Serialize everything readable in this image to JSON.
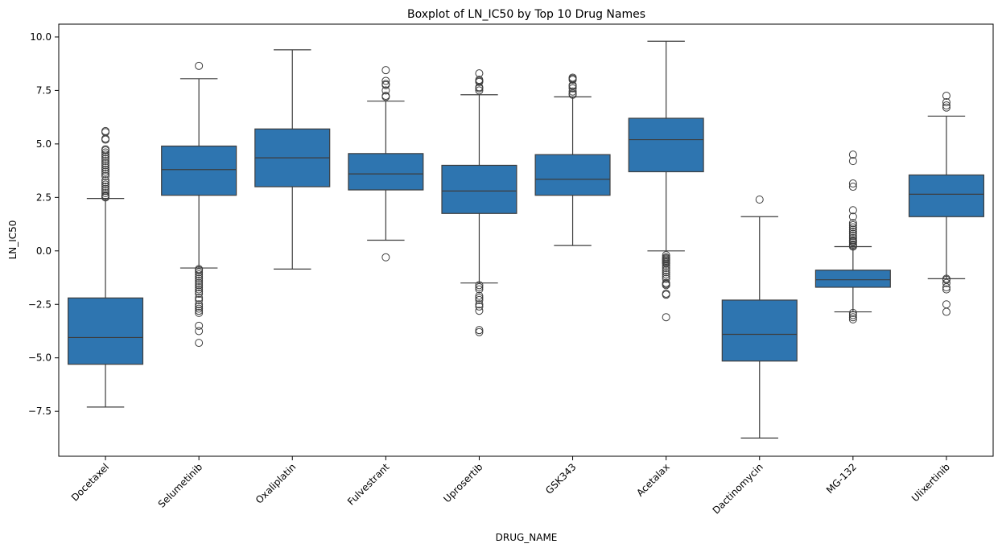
{
  "chart_data": {
    "type": "box",
    "title": "Boxplot of LN_IC50 by Top 10 Drug Names",
    "xlabel": "DRUG_NAME",
    "ylabel": "LN_IC50",
    "ylim": [
      -9.6,
      10.6
    ],
    "yticks": [
      -7.5,
      -5.0,
      -2.5,
      0.0,
      2.5,
      5.0,
      7.5,
      10.0
    ],
    "ytick_labels": [
      "−7.5",
      "−5.0",
      "−2.5",
      "0.0",
      "2.5",
      "5.0",
      "7.5",
      "10.0"
    ],
    "grid": false,
    "box_color": "#2e75b0",
    "line_color": "#3d3d3d",
    "categories": [
      "Docetaxel",
      "Selumetinib",
      "Oxaliplatin",
      "Fulvestrant",
      "Uprosertib",
      "GSK343",
      "Acetalax",
      "Dactinomycin",
      "MG-132",
      "Ulixertinib"
    ],
    "boxes": [
      {
        "name": "Docetaxel",
        "whisker_low": -7.3,
        "q1": -5.3,
        "median": -4.05,
        "q3": -2.2,
        "whisker_high": 2.45,
        "outliers": [
          2.5,
          2.55,
          2.6,
          2.7,
          2.8,
          2.9,
          3.0,
          3.1,
          3.2,
          3.3,
          3.5,
          3.6,
          3.7,
          3.8,
          3.9,
          4.0,
          4.1,
          4.2,
          4.3,
          4.4,
          4.5,
          4.6,
          4.7,
          4.75,
          5.2,
          5.25,
          5.55,
          5.6
        ]
      },
      {
        "name": "Selumetinib",
        "whisker_low": -0.8,
        "q1": 2.6,
        "median": 3.8,
        "q3": 4.9,
        "whisker_high": 8.05,
        "outliers": [
          8.65,
          -0.85,
          -0.9,
          -1.0,
          -1.1,
          -1.2,
          -1.3,
          -1.4,
          -1.5,
          -1.6,
          -1.7,
          -1.8,
          -1.9,
          -2.0,
          -2.2,
          -2.3,
          -2.5,
          -2.6,
          -2.7,
          -2.8,
          -2.9,
          -3.5,
          -3.75,
          -4.3
        ]
      },
      {
        "name": "Oxaliplatin",
        "whisker_low": -0.85,
        "q1": 3.0,
        "median": 4.35,
        "q3": 5.7,
        "whisker_high": 9.4,
        "outliers": []
      },
      {
        "name": "Fulvestrant",
        "whisker_low": 0.5,
        "q1": 2.85,
        "median": 3.6,
        "q3": 4.55,
        "whisker_high": 7.0,
        "outliers": [
          -0.3,
          7.2,
          7.25,
          7.5,
          7.75,
          7.8,
          7.95,
          8.45
        ]
      },
      {
        "name": "Uprosertib",
        "whisker_low": -1.5,
        "q1": 1.75,
        "median": 2.8,
        "q3": 4.0,
        "whisker_high": 7.3,
        "outliers": [
          7.5,
          7.6,
          7.65,
          7.9,
          7.95,
          8.0,
          8.3,
          -1.6,
          -1.7,
          -1.8,
          -2.1,
          -2.2,
          -2.3,
          -2.5,
          -2.6,
          -2.8,
          -3.7,
          -3.8
        ]
      },
      {
        "name": "GSK343",
        "whisker_low": 0.25,
        "q1": 2.6,
        "median": 3.35,
        "q3": 4.5,
        "whisker_high": 7.2,
        "outliers": [
          7.3,
          7.35,
          7.45,
          7.6,
          7.7,
          7.75,
          8.0,
          8.05,
          8.1
        ]
      },
      {
        "name": "Acetalax",
        "whisker_low": 0.0,
        "q1": 3.7,
        "median": 5.2,
        "q3": 6.2,
        "whisker_high": 9.8,
        "outliers": [
          -0.2,
          -0.3,
          -0.35,
          -0.4,
          -0.45,
          -0.5,
          -0.55,
          -0.6,
          -0.7,
          -0.8,
          -0.9,
          -1.0,
          -1.1,
          -1.2,
          -1.3,
          -1.5,
          -1.55,
          -1.6,
          -2.0,
          -2.05,
          -3.1
        ]
      },
      {
        "name": "Dactinomycin",
        "whisker_low": -8.75,
        "q1": -5.15,
        "median": -3.9,
        "q3": -2.3,
        "whisker_high": 1.6,
        "outliers": [
          2.4
        ]
      },
      {
        "name": "MG-132",
        "whisker_low": -2.85,
        "q1": -1.7,
        "median": -1.35,
        "q3": -0.9,
        "whisker_high": 0.2,
        "outliers": [
          0.2,
          0.25,
          0.3,
          0.4,
          0.45,
          0.5,
          0.6,
          0.7,
          0.8,
          0.9,
          1.0,
          1.1,
          1.2,
          1.3,
          1.6,
          1.9,
          3.0,
          3.15,
          4.2,
          4.5,
          -2.9,
          -3.0,
          -3.1,
          -3.2
        ]
      },
      {
        "name": "Ulixertinib",
        "whisker_low": -1.3,
        "q1": 1.6,
        "median": 2.65,
        "q3": 3.55,
        "whisker_high": 6.3,
        "outliers": [
          6.7,
          6.8,
          6.95,
          7.25,
          -1.3,
          -1.35,
          -1.5,
          -1.7,
          -1.8,
          -2.5,
          -2.85
        ]
      }
    ]
  }
}
